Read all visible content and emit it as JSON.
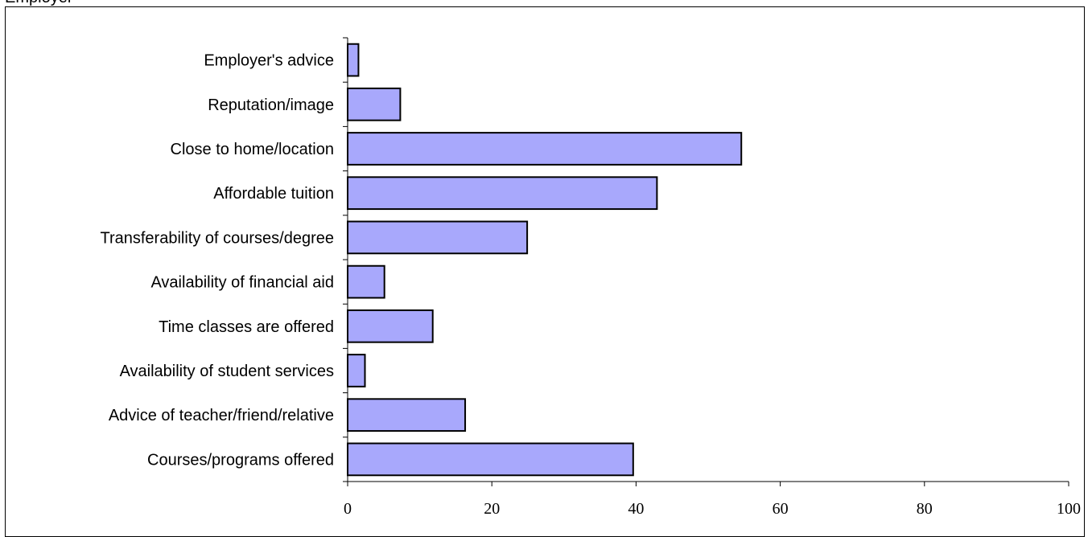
{
  "header": {
    "clipped_text": "Employer"
  },
  "chart_data": {
    "type": "bar",
    "orientation": "horizontal",
    "categories": [
      "Employer's advice",
      "Reputation/image",
      "Close to home/location",
      "Affordable tuition",
      "Transferability of courses/degree",
      "Availability of financial aid",
      "Time classes are offered",
      "Availability of student services",
      "Advice of teacher/friend/relative",
      "Courses/programs offered"
    ],
    "values": [
      1.5,
      7.3,
      54.6,
      42.9,
      24.9,
      5.1,
      11.8,
      2.4,
      16.3,
      39.6
    ],
    "xlim": [
      0,
      100
    ],
    "x_ticks": [
      "0",
      "20",
      "40",
      "60",
      "80",
      "100"
    ],
    "title": "",
    "xlabel": "",
    "ylabel": "",
    "grid": false,
    "bar_color": "#a8a8fc",
    "bar_stroke": "#000000"
  }
}
